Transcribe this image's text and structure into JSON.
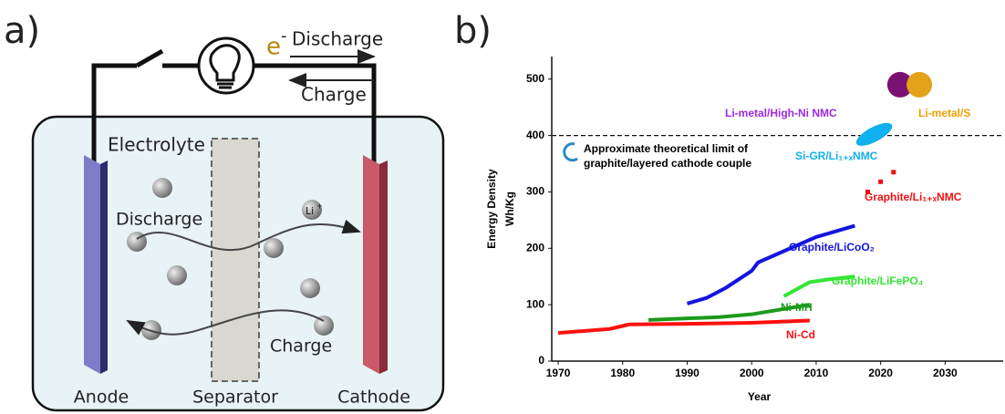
{
  "diagram": {
    "panel_label": "a)",
    "electron": "e",
    "electron_charge": "-",
    "discharge_top": "Discharge",
    "charge_top": "Charge",
    "electrolyte": "Electrolyte",
    "li_ion": "Li",
    "li_charge": "+",
    "discharge": "Discharge",
    "charge": "Charge",
    "anode": "Anode",
    "separator": "Separator",
    "cathode": "Cathode"
  },
  "chart_data": {
    "type": "line",
    "panel_label": "b)",
    "x_label": "Year",
    "y_label": [
      "Energy Density",
      "Wh/Kg"
    ],
    "xlim": [
      1969,
      2039
    ],
    "ylim": [
      0,
      540
    ],
    "xticks": [
      1970,
      1980,
      1990,
      2000,
      2010,
      2020,
      2030
    ],
    "yticks": [
      0,
      100,
      200,
      300,
      400,
      500
    ],
    "reference_line": {
      "y": 400,
      "label": [
        "Approximate theoretical limit of",
        "graphite/layered cathode couple"
      ]
    },
    "series": [
      {
        "name": "Ni-Cd",
        "color": "#ff1010",
        "marker": "line",
        "x": [
          1970,
          1978,
          1981,
          1990,
          2000,
          2009
        ],
        "values": [
          50,
          57,
          65,
          66,
          68,
          72
        ]
      },
      {
        "name": "Ni-MH",
        "color": "#1c9a1c",
        "marker": "line",
        "x": [
          1984,
          1995,
          2000,
          2009
        ],
        "values": [
          73,
          78,
          83,
          100
        ]
      },
      {
        "name": "Graphite/LiCoO₂",
        "color": "#1414e0",
        "marker": "line",
        "x": [
          1990,
          1993,
          1996,
          2000,
          2001,
          2005,
          2010,
          2016
        ],
        "values": [
          102,
          112,
          130,
          160,
          175,
          195,
          220,
          240
        ]
      },
      {
        "name": "Graphite/LiFePO₄",
        "color": "#33e633",
        "marker": "line",
        "x": [
          2005,
          2009,
          2012,
          2016
        ],
        "values": [
          115,
          140,
          145,
          150
        ]
      },
      {
        "name": "Graphite/Li₁₊ₓNMC",
        "color": "#ee1111",
        "marker": "square",
        "x": [
          2018,
          2020,
          2022
        ],
        "values": [
          300,
          318,
          335
        ]
      },
      {
        "name": "Si-GR/Li₁₊ₓNMC",
        "color": "#11b0ee",
        "marker": "ellipse",
        "x": [
          2019
        ],
        "values": [
          402
        ]
      },
      {
        "name": "Li-metal/High-Ni NMC",
        "color": "#7a1170",
        "label_color": "#9a2be2",
        "marker": "circle",
        "x": [
          2023
        ],
        "values": [
          490
        ]
      },
      {
        "name": "Li-metal/S",
        "color": "#e2a21a",
        "label_color": "#f0a000",
        "marker": "circle",
        "x": [
          2026
        ],
        "values": [
          490
        ]
      }
    ]
  }
}
